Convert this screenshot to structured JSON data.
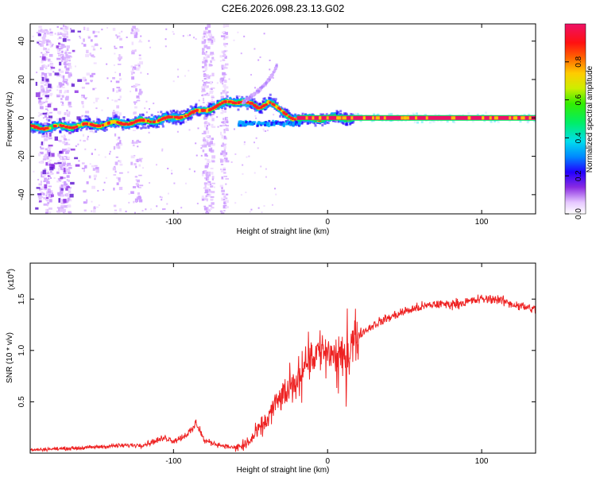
{
  "title": "C2E6.2026.098.23.13.G02",
  "chart_data": [
    {
      "type": "heatmap",
      "xlabel": "Height of straight line (km)",
      "ylabel": "Frequency (Hz)",
      "xlim": [
        -193,
        135
      ],
      "ylim": [
        -50,
        49
      ],
      "xticks": [
        -100,
        0,
        100
      ],
      "yticks": [
        -40,
        -20,
        0,
        20,
        40
      ],
      "xtick_labels": [
        "-100",
        "0",
        "100"
      ],
      "ytick_labels": [
        "-40",
        "-20",
        "0",
        "20",
        "40"
      ],
      "ridge_x": [
        -193,
        -180,
        -160,
        -140,
        -120,
        -100,
        -80,
        -65,
        -55,
        -45,
        -38,
        -30,
        -22,
        -15,
        0,
        20,
        135
      ],
      "ridge_y": [
        -5,
        -5,
        -4,
        -3,
        -2,
        0,
        4,
        8,
        9,
        5,
        9,
        3,
        0,
        -1,
        0,
        0,
        0
      ],
      "branch_x": [
        -55,
        -50,
        -45,
        -40,
        -36,
        -33
      ],
      "branch_y": [
        8,
        11,
        14,
        18,
        22,
        27
      ],
      "colorbar": {
        "label": "Normalized spectral amplitude",
        "ticks": [
          0.0,
          0.2,
          0.4,
          0.6,
          0.8
        ],
        "tick_labels": [
          "0.0",
          "0.2",
          "0.4",
          "0.6",
          "0.8"
        ],
        "range": [
          0,
          1
        ]
      }
    },
    {
      "type": "line",
      "xlabel": "Height of straight line (km)",
      "ylabel": "SNR (10 * v/v)",
      "multiplier": "(x10",
      "multiplier_exp": "4",
      "multiplier_close": ")",
      "xlim": [
        -193,
        135
      ],
      "ylim": [
        0,
        1.85
      ],
      "xticks": [
        -100,
        0,
        100
      ],
      "yticks": [
        0.5,
        1.0,
        1.5
      ],
      "xtick_labels": [
        "-100",
        "0",
        "100"
      ],
      "ytick_labels": [
        "0.5",
        "1.0",
        "1.5"
      ],
      "series": [
        {
          "name": "SNR",
          "color": "#ee2222",
          "x": [
            -193,
            -180,
            -160,
            -140,
            -120,
            -105,
            -100,
            -95,
            -88,
            -85,
            -80,
            -70,
            -60,
            -55,
            -50,
            -45,
            -40,
            -35,
            -30,
            -25,
            -20,
            -15,
            -10,
            -5,
            0,
            5,
            10,
            15,
            20,
            30,
            40,
            50,
            60,
            70,
            80,
            90,
            100,
            110,
            120,
            135
          ],
          "y": [
            0.03,
            0.04,
            0.05,
            0.07,
            0.08,
            0.15,
            0.12,
            0.15,
            0.22,
            0.3,
            0.12,
            0.08,
            0.05,
            0.07,
            0.12,
            0.22,
            0.3,
            0.45,
            0.55,
            0.6,
            0.7,
            0.9,
            0.95,
            1.0,
            1.0,
            0.95,
            0.9,
            1.05,
            1.15,
            1.25,
            1.32,
            1.38,
            1.42,
            1.45,
            1.45,
            1.47,
            1.5,
            1.5,
            1.45,
            1.4
          ]
        }
      ]
    }
  ]
}
